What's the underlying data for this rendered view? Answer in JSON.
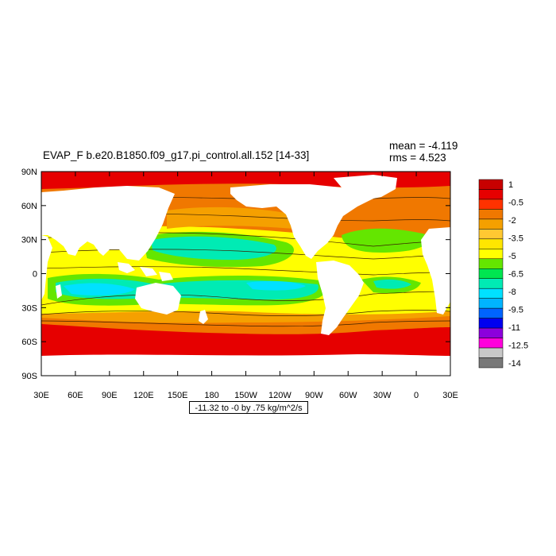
{
  "title": "EVAP_F b.e20.B1850.f09_g17.pi_control.all.152 [14-33]",
  "stats": {
    "mean": "mean = -4.119",
    "rms": "rms = 4.523"
  },
  "footer": "-11.32 to -0 by .75 kg/m^2/s",
  "axes": {
    "lat_labels": [
      "90N",
      "60N",
      "30N",
      "0",
      "30S",
      "60S",
      "90S"
    ],
    "lon_labels": [
      "30E",
      "60E",
      "90E",
      "120E",
      "150E",
      "180",
      "150W",
      "120W",
      "90W",
      "60W",
      "30W",
      "0",
      "30E"
    ]
  },
  "colorbar": {
    "colors": [
      "#c80000",
      "#e60000",
      "#ff3200",
      "#f07800",
      "#f5a000",
      "#ffc832",
      "#ffe600",
      "#ffff00",
      "#64e600",
      "#00e650",
      "#00ebb4",
      "#00e1ff",
      "#00b4ff",
      "#0064ff",
      "#0000f0",
      "#8c00dc",
      "#ff00dc",
      "#c8c8c8",
      "#787878"
    ],
    "labels": [
      "1",
      "-0.5",
      "-2",
      "-3.5",
      "-5",
      "-6.5",
      "-8",
      "-9.5",
      "-11",
      "-12.5",
      "-14"
    ]
  },
  "map_colors": {
    "ocean_base": "#f07800",
    "polar": "#e60000",
    "subpolar": "#f5a000",
    "tropics": "#ffff00",
    "subtropics_green": "#64e600",
    "subtropics_teal": "#00ebb4",
    "core_cyan": "#00e1ff",
    "land": "#ffffff",
    "contour": "#3a2000"
  }
}
